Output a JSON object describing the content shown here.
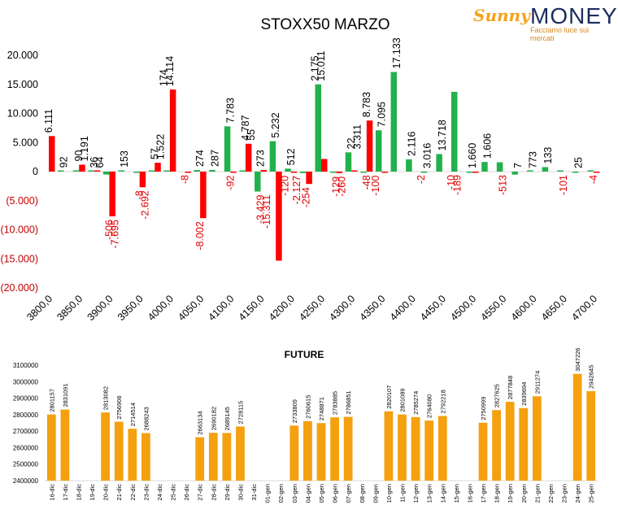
{
  "logo": {
    "part1": "Sunny",
    "part2": "MONEY",
    "tagline": "Facciamo luce sui mercati"
  },
  "chart_data": [
    {
      "type": "bar",
      "title": "STOXX50 MARZO",
      "ylim": [
        -20000,
        20000
      ],
      "yticks": [
        20000,
        15000,
        10000,
        5000,
        0,
        -5000,
        -10000,
        -15000,
        -20000
      ],
      "ytick_labels": [
        "20.000",
        "15.000",
        "10.000",
        "5.000",
        "0",
        "(5.000)",
        "(10.000)",
        "(15.000)",
        "(20.000)"
      ],
      "xtick_labels": [
        "3800,0",
        "3850,0",
        "3900,0",
        "3950,0",
        "4000,0",
        "4050,0",
        "4100,0",
        "4150,0",
        "4200,0",
        "4250,0",
        "4300,0",
        "4350,0",
        "4400,0",
        "4450,0",
        "4500,0",
        "4550,0",
        "4600,0",
        "4650,0",
        "4700,0"
      ],
      "categories": [
        3800,
        3825,
        3850,
        3875,
        3900,
        3925,
        3950,
        3975,
        4000,
        4025,
        4050,
        4075,
        4100,
        4125,
        4150,
        4175,
        4200,
        4225,
        4250,
        4275,
        4300,
        4325,
        4350,
        4375,
        4400,
        4425,
        4450,
        4475,
        4500,
        4525,
        4550,
        4575,
        4600,
        4625,
        4650,
        4675,
        4700
      ],
      "series": [
        {
          "color": "#22b14c",
          "values": [
            0,
            92,
            90,
            36,
            -506,
            153,
            -8,
            57,
            174,
            0,
            274,
            287,
            7783,
            55,
            -3429,
            5232,
            512,
            -254,
            15011,
            -129,
            3311,
            -48,
            7095,
            17133,
            2116,
            -2,
            3016,
            13718,
            -10,
            1660,
            1606,
            -513,
            7,
            773,
            133,
            -101,
            25
          ]
        },
        {
          "color": "#ff0000",
          "values": [
            6111,
            0,
            1191,
            64,
            -7695,
            0,
            -2692,
            1522,
            14114,
            -8,
            -8002,
            0,
            -92,
            4787,
            273,
            -15311,
            -120,
            -2127,
            2175,
            -260,
            22,
            8783,
            -100,
            0,
            0,
            0,
            0,
            0,
            -189,
            0,
            0,
            0,
            0,
            0,
            0,
            0,
            -4
          ]
        }
      ],
      "data_labels": [
        {
          "x": 3800,
          "text": "6.111"
        },
        {
          "x": 3825,
          "text": "92"
        },
        {
          "x": 3850,
          "text": "90"
        },
        {
          "x": 3850,
          "text": "1.191"
        },
        {
          "x": 3875,
          "text": "36"
        },
        {
          "x": 3875,
          "text": "64"
        },
        {
          "x": 3900,
          "text": "-506"
        },
        {
          "x": 3900,
          "text": "-7.695"
        },
        {
          "x": 3925,
          "text": "153"
        },
        {
          "x": 3950,
          "text": "-8"
        },
        {
          "x": 3950,
          "text": "-2.692"
        },
        {
          "x": 3975,
          "text": "57"
        },
        {
          "x": 3975,
          "text": "1.522"
        },
        {
          "x": 3990,
          "text": "174"
        },
        {
          "x": 4000,
          "text": "14.114"
        },
        {
          "x": 4025,
          "text": "-8"
        },
        {
          "x": 4050,
          "text": "274"
        },
        {
          "x": 4050,
          "text": "-8.002"
        },
        {
          "x": 4075,
          "text": "287"
        },
        {
          "x": 4100,
          "text": "-92"
        },
        {
          "x": 4100,
          "text": "7.783"
        },
        {
          "x": 4125,
          "text": "4.787"
        },
        {
          "x": 4125,
          "text": "55"
        },
        {
          "x": 4150,
          "text": "273"
        },
        {
          "x": 4150,
          "text": "-3.429"
        },
        {
          "x": 4160,
          "text": "-15.311"
        },
        {
          "x": 4175,
          "text": "5.232"
        },
        {
          "x": 4190,
          "text": "-120"
        },
        {
          "x": 4200,
          "text": "512"
        },
        {
          "x": 4210,
          "text": "-2.127"
        },
        {
          "x": 4225,
          "text": "-254"
        },
        {
          "x": 4240,
          "text": "2.175"
        },
        {
          "x": 4250,
          "text": "15.011"
        },
        {
          "x": 4275,
          "text": "-129"
        },
        {
          "x": 4275,
          "text": "-260"
        },
        {
          "x": 4300,
          "text": "22"
        },
        {
          "x": 4310,
          "text": "3.311"
        },
        {
          "x": 4325,
          "text": "8.783"
        },
        {
          "x": 4325,
          "text": "-48"
        },
        {
          "x": 4340,
          "text": "-100"
        },
        {
          "x": 4350,
          "text": "7.095"
        },
        {
          "x": 4375,
          "text": "17.133"
        },
        {
          "x": 4400,
          "text": "2.116"
        },
        {
          "x": 4415,
          "text": "-2"
        },
        {
          "x": 4425,
          "text": "3.016"
        },
        {
          "x": 4450,
          "text": "13.718"
        },
        {
          "x": 4465,
          "text": "-10"
        },
        {
          "x": 4475,
          "text": "-189"
        },
        {
          "x": 4500,
          "text": "1.660"
        },
        {
          "x": 4525,
          "text": "1.606"
        },
        {
          "x": 4550,
          "text": "-513"
        },
        {
          "x": 4575,
          "text": "7"
        },
        {
          "x": 4600,
          "text": "773"
        },
        {
          "x": 4625,
          "text": "133"
        },
        {
          "x": 4650,
          "text": "-101"
        },
        {
          "x": 4675,
          "text": "25"
        },
        {
          "x": 4700,
          "text": "-4"
        }
      ],
      "grid": false
    },
    {
      "type": "bar",
      "title": "FUTURE",
      "color": "#f5a00f",
      "ylim": [
        2400000,
        3100000
      ],
      "yticks": [
        2400000,
        2500000,
        2600000,
        2700000,
        2800000,
        2900000,
        3000000,
        3100000
      ],
      "ytick_labels": [
        "2400000",
        "2500000",
        "2600000",
        "2700000",
        "2800000",
        "2900000",
        "3000000",
        "3100000"
      ],
      "categories": [
        "16-dic",
        "17-dic",
        "18-dic",
        "19-dic",
        "20-dic",
        "21-dic",
        "22-dic",
        "23-dic",
        "24-dic",
        "25-dic",
        "26-dic",
        "27-dic",
        "28-dic",
        "29-dic",
        "30-dic",
        "31-dic",
        "01-gen",
        "02-gen",
        "03-gen",
        "04-gen",
        "05-gen",
        "06-gen",
        "07-gen",
        "08-gen",
        "09-gen",
        "10-gen",
        "11-gen",
        "12-gen",
        "13-gen",
        "14-gen",
        "15-gen",
        "16-gen",
        "17-gen",
        "18-gen",
        "19-gen",
        "20-gen",
        "21-gen",
        "22-gen",
        "23-gen",
        "24-gen",
        "25-gen"
      ],
      "values": [
        2801157,
        2831091,
        null,
        null,
        2813082,
        2756906,
        2714514,
        2688243,
        null,
        null,
        null,
        2663134,
        2690182,
        2689145,
        2728115,
        null,
        null,
        null,
        2733809,
        2760615,
        2748871,
        2783885,
        2786851,
        null,
        null,
        2820107,
        2801089,
        2785274,
        2764080,
        2792218,
        null,
        null,
        2750999,
        2827625,
        2877848,
        2839694,
        2911274,
        null,
        null,
        3047226,
        2942645
      ],
      "value_labels": [
        "2801157",
        "2831091",
        "",
        "",
        "2813082",
        "2756906",
        "2714514",
        "2688243",
        "",
        "",
        "",
        "2663134",
        "2690182",
        "2689145",
        "2728115",
        "",
        "",
        "",
        "2733809",
        "2760615",
        "2748871",
        "2783885",
        "2786851",
        "",
        "",
        "2820107",
        "2801089",
        "2785274",
        "2764080",
        "2792218",
        "",
        "",
        "2750999",
        "2827625",
        "2877848",
        "2839694",
        "2911274",
        "",
        "",
        "3047226",
        "2942645"
      ],
      "grid": false
    }
  ]
}
